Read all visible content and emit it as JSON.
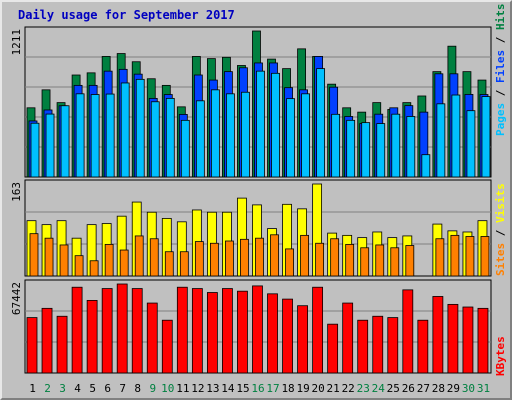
{
  "title": "Daily usage for September 2017",
  "colors": {
    "background": "#c0c0c0",
    "panel": "#c0c0c0",
    "grid": "#808080",
    "title": "#0000c0",
    "pages": "#00c0ff",
    "files": "#0040ff",
    "hits": "#008040",
    "visits": "#ffff00",
    "sites": "#ff8000",
    "kbytes": "#ff0000",
    "weekday_label": "#000000",
    "weekend_label": "#008040"
  },
  "chart_data": [
    {
      "type": "bar",
      "panel": "top",
      "ymax_label": "1211",
      "ymax": 1211,
      "legend": [
        {
          "name": "Pages",
          "color": "#00c0ff"
        },
        {
          "name": "Files",
          "color": "#0040ff"
        },
        {
          "name": "Hits",
          "color": "#008040"
        }
      ],
      "series": [
        {
          "name": "Hits",
          "values": [
            574,
            723,
            617,
            846,
            864,
            1000,
            1024,
            956,
            815,
            760,
            582,
            1000,
            982,
            993,
            925,
            1211,
            978,
            899,
            1063,
            1000,
            770,
            574,
            538,
            617,
            560,
            617,
            672,
            874,
            1085,
            874,
            804
          ]
        },
        {
          "name": "Files",
          "values": [
            465,
            556,
            591,
            760,
            760,
            878,
            893,
            853,
            652,
            684,
            519,
            846,
            804,
            874,
            906,
            946,
            946,
            741,
            723,
            1000,
            745,
            502,
            443,
            521,
            574,
            592,
            538,
            856,
            856,
            685,
            684
          ]
        },
        {
          "name": "Pages",
          "values": [
            446,
            522,
            591,
            690,
            684,
            688,
            780,
            810,
            624,
            652,
            470,
            632,
            723,
            690,
            703,
            878,
            860,
            650,
            690,
            899,
            520,
            470,
            451,
            443,
            521,
            502,
            185,
            607,
            680,
            550,
            667
          ]
        }
      ]
    },
    {
      "type": "bar",
      "panel": "middle",
      "ymax_label": "163",
      "ymax": 163,
      "legend": [
        {
          "name": "Sites",
          "color": "#ff8000"
        },
        {
          "name": "Visits",
          "color": "#ffff00"
        }
      ],
      "series": [
        {
          "name": "Visits",
          "values": [
            98,
            91,
            98,
            67,
            91,
            93,
            106,
            131,
            113,
            102,
            96,
            117,
            113,
            113,
            138,
            126,
            84,
            127,
            119,
            163,
            76,
            72,
            68,
            78,
            68,
            71,
            0,
            92,
            80,
            78,
            98
          ]
        },
        {
          "name": "Sites",
          "values": [
            75,
            67,
            55,
            36,
            27,
            56,
            46,
            71,
            66,
            43,
            43,
            61,
            58,
            62,
            65,
            67,
            73,
            48,
            72,
            58,
            66,
            56,
            50,
            55,
            50,
            54,
            0,
            66,
            72,
            70,
            70
          ]
        }
      ]
    },
    {
      "type": "bar",
      "panel": "bottom",
      "ymax_label": "67442",
      "ymax": 67442,
      "legend": [
        {
          "name": "KBytes",
          "color": "#ff0000"
        }
      ],
      "series": [
        {
          "name": "KBytes",
          "values": [
            42000,
            49000,
            43000,
            65000,
            55000,
            64000,
            67442,
            64000,
            53000,
            40000,
            65000,
            64000,
            61000,
            64000,
            62000,
            66000,
            60000,
            56000,
            51000,
            65000,
            37000,
            53000,
            40000,
            43000,
            42000,
            63000,
            40000,
            58000,
            52000,
            50000,
            49000
          ]
        }
      ]
    }
  ],
  "days": [
    "1",
    "2",
    "3",
    "4",
    "5",
    "6",
    "7",
    "8",
    "9",
    "10",
    "11",
    "12",
    "13",
    "14",
    "15",
    "16",
    "17",
    "18",
    "19",
    "20",
    "21",
    "22",
    "23",
    "24",
    "25",
    "26",
    "27",
    "28",
    "29",
    "30",
    "31"
  ],
  "weekend_days": [
    2,
    3,
    9,
    10,
    16,
    17,
    23,
    24,
    30,
    31
  ]
}
